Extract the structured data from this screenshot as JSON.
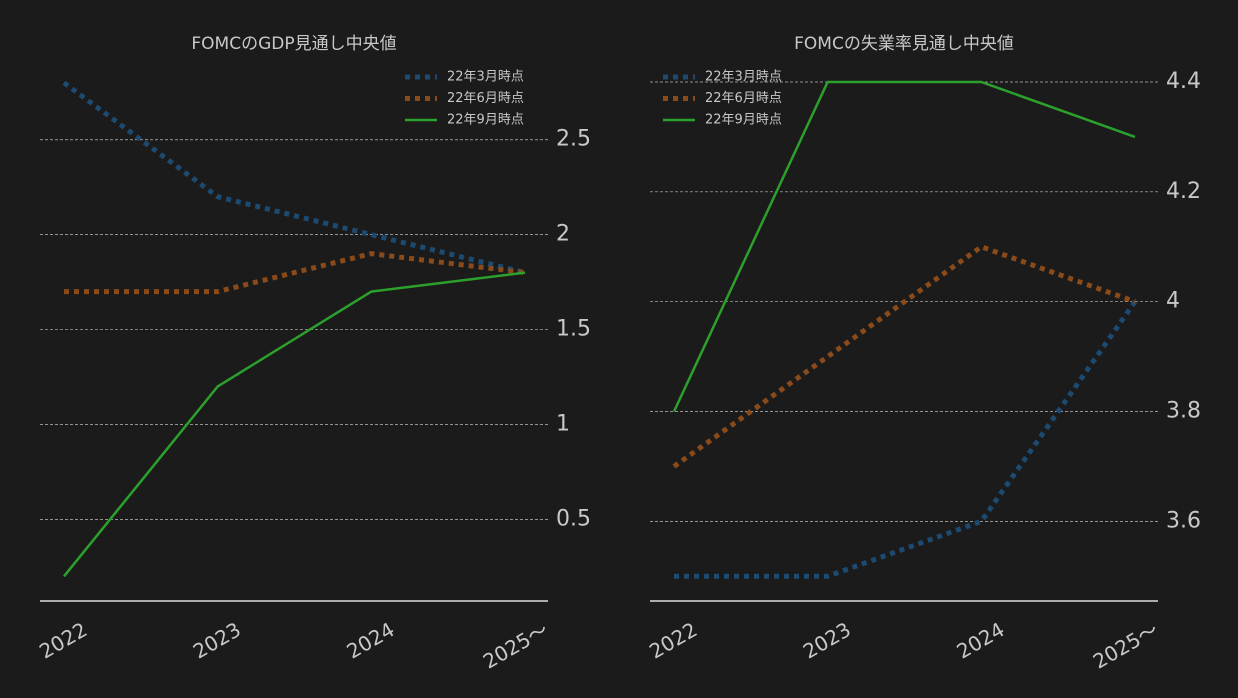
{
  "chart_data": [
    {
      "type": "line",
      "title": "FOMCのGDP見通し中央値",
      "categories": [
        "2022",
        "2023",
        "2024",
        "2025〜"
      ],
      "series": [
        {
          "name": "22年3月時点",
          "color": "#1d4a70",
          "dash": "dotted",
          "values": [
            2.8,
            2.2,
            2.0,
            1.8
          ]
        },
        {
          "name": "22年6月時点",
          "color": "#8a4a1a",
          "dash": "dotted",
          "values": [
            1.7,
            1.7,
            1.9,
            1.8
          ]
        },
        {
          "name": "22年9月時点",
          "color": "#2ca02c",
          "dash": "solid",
          "values": [
            0.2,
            1.2,
            1.7,
            1.8
          ]
        }
      ],
      "ylim": [
        0.07,
        2.92
      ],
      "yticks": [
        0.5,
        1.0,
        1.5,
        2.0,
        2.5
      ],
      "grid": true,
      "legend": "upper right"
    },
    {
      "type": "line",
      "title": "FOMCの失業率見通し中央値",
      "categories": [
        "2022",
        "2023",
        "2024",
        "2025〜"
      ],
      "series": [
        {
          "name": "22年3月時点",
          "color": "#1d4a70",
          "dash": "dotted",
          "values": [
            3.5,
            3.5,
            3.6,
            4.0
          ]
        },
        {
          "name": "22年6月時点",
          "color": "#8a4a1a",
          "dash": "dotted",
          "values": [
            3.7,
            3.9,
            4.1,
            4.0
          ]
        },
        {
          "name": "22年9月時点",
          "color": "#2ca02c",
          "dash": "solid",
          "values": [
            3.8,
            4.4,
            4.4,
            4.3
          ]
        }
      ],
      "ylim": [
        3.455,
        4.44
      ],
      "yticks": [
        3.6,
        3.8,
        4.0,
        4.2,
        4.4
      ],
      "grid": true,
      "legend": "upper left"
    }
  ]
}
